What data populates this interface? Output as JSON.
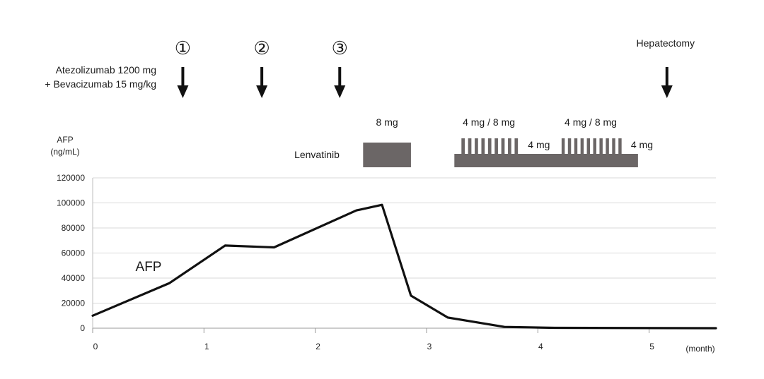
{
  "chart_data": {
    "type": "line",
    "ylabel_line1": "AFP",
    "ylabel_line2": "(ng/mL)",
    "xunit": "(month)",
    "ylim": [
      0,
      120000
    ],
    "yticks": [
      0,
      20000,
      40000,
      60000,
      80000,
      100000,
      120000
    ],
    "ytick_labels": [
      "0",
      "20000",
      "40000",
      "60000",
      "80000",
      "100000",
      "120000"
    ],
    "xlim": [
      0,
      5.6
    ],
    "xticks": [
      0,
      1,
      2,
      3,
      4,
      5
    ],
    "xtick_labels": [
      "0",
      "1",
      "2",
      "3",
      "4",
      "5"
    ],
    "grid": "horizontal",
    "series": [
      {
        "name": "AFP",
        "color": "#111111",
        "x": [
          0,
          0.69,
          1.19,
          1.63,
          2.37,
          2.6,
          2.86,
          3.19,
          3.7,
          4.15,
          5.6
        ],
        "y": [
          10000,
          36000,
          66000,
          64500,
          94000,
          98500,
          26000,
          8500,
          1000,
          300,
          0
        ]
      }
    ],
    "treatment": {
      "label_line1": "Atezolizumab 1200 mg",
      "label_line2": "+ Bevacizumab 15 mg/kg",
      "doses": [
        {
          "label": "①",
          "month": 0.81
        },
        {
          "label": "②",
          "month": 1.52
        },
        {
          "label": "③",
          "month": 2.22
        }
      ]
    },
    "surgery": {
      "label": "Hepatectomy",
      "month": 5.16
    },
    "lenvatinib": {
      "label": "Lenvatinib",
      "block_8mg": {
        "label": "8 mg",
        "start": 2.43,
        "end": 2.86
      },
      "alt1": {
        "label": "4 mg / 8 mg",
        "start": 3.25,
        "end": 3.87
      },
      "cont1": {
        "label": "4 mg",
        "start": 3.87,
        "end": 4.15
      },
      "alt2": {
        "label": "4 mg / 8 mg",
        "start": 4.15,
        "end": 4.8
      },
      "cont2": {
        "label": "4 mg",
        "start": 4.8,
        "end": 4.9
      },
      "base": {
        "start": 3.25,
        "end": 4.9
      }
    }
  }
}
